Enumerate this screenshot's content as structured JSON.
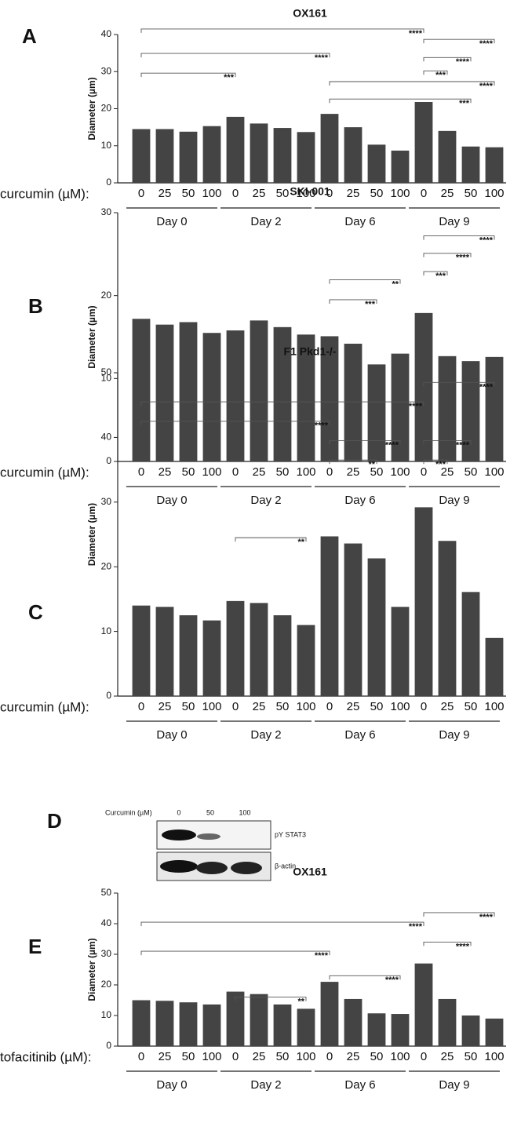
{
  "chart_data": [
    {
      "type": "bar",
      "panel": "A",
      "title": "OX161",
      "ylabel": "Diameter (µm)",
      "xlabel": "curcumin (µM):",
      "groups": [
        "Day 0",
        "Day 2",
        "Day 6",
        "Day 9"
      ],
      "categories": [
        "0",
        "25",
        "50",
        "100",
        "0",
        "25",
        "50",
        "100",
        "0",
        "25",
        "50",
        "100",
        "0",
        "25",
        "50",
        "100"
      ],
      "values": [
        14.5,
        14.5,
        13.8,
        15.3,
        17.8,
        16.0,
        14.8,
        13.7,
        18.6,
        15.0,
        10.3,
        8.7,
        21.8,
        14.0,
        9.8,
        9.6
      ],
      "color": "#444444",
      "ylim": [
        0,
        40
      ],
      "yticks": [
        0,
        10,
        20,
        30,
        40
      ],
      "annotations": [
        {
          "text": "****",
          "from": 0,
          "to": 12,
          "y": 41.5
        },
        {
          "text": "****",
          "from": 0,
          "to": 8,
          "y": 34.9
        },
        {
          "text": "***",
          "from": 0,
          "to": 4,
          "y": 29.6
        },
        {
          "text": "****",
          "from": 8,
          "to": 15,
          "y": 27.3
        },
        {
          "text": "***",
          "from": 8,
          "to": 14,
          "y": 22.6
        },
        {
          "text": "****",
          "from": 12,
          "to": 15,
          "y": 38.7
        },
        {
          "text": "****",
          "from": 12,
          "to": 14,
          "y": 33.8
        },
        {
          "text": "***",
          "from": 12,
          "to": 13,
          "y": 30.2
        }
      ]
    },
    {
      "type": "bar",
      "panel": "B",
      "title": "SKI-001",
      "ylabel": "Diameter (µm)",
      "xlabel": "curcumin (µM):",
      "groups": [
        "Day 0",
        "Day 2",
        "Day 6",
        "Day 9"
      ],
      "categories": [
        "0",
        "25",
        "50",
        "100",
        "0",
        "25",
        "50",
        "100",
        "0",
        "25",
        "50",
        "100",
        "0",
        "25",
        "50",
        "100"
      ],
      "values": [
        17.2,
        16.5,
        16.8,
        15.5,
        15.8,
        17.0,
        16.2,
        15.3,
        15.1,
        14.2,
        11.7,
        13.0,
        17.9,
        12.7,
        12.1,
        12.6
      ],
      "color": "#444444",
      "ylim": [
        0,
        30
      ],
      "yticks": [
        0,
        10,
        20,
        30
      ],
      "annotations": [
        {
          "text": "**",
          "from": 8,
          "to": 11,
          "y": 21.9
        },
        {
          "text": "***",
          "from": 8,
          "to": 10,
          "y": 19.5
        },
        {
          "text": "****",
          "from": 12,
          "to": 15,
          "y": 27.2
        },
        {
          "text": "****",
          "from": 12,
          "to": 14,
          "y": 25.1
        },
        {
          "text": "***",
          "from": 12,
          "to": 13,
          "y": 22.9
        }
      ]
    },
    {
      "type": "bar",
      "panel": "C",
      "title": "F1 Pkd1-/-",
      "ylabel": "Diameter (µm)",
      "xlabel": "curcumin (µM):",
      "groups": [
        "Day 0",
        "Day 2",
        "Day 6",
        "Day 9"
      ],
      "categories": [
        "0",
        "25",
        "50",
        "100",
        "0",
        "25",
        "50",
        "100",
        "0",
        "25",
        "50",
        "100",
        "0",
        "25",
        "50",
        "100"
      ],
      "values": [
        14.0,
        13.8,
        12.5,
        11.7,
        14.7,
        14.4,
        12.5,
        11.0,
        24.7,
        23.6,
        21.3,
        13.8,
        29.2,
        24.0,
        16.1,
        9.0
      ],
      "color": "#444444",
      "ylim": [
        0,
        50
      ],
      "yticks": [
        0,
        10,
        20,
        30,
        40,
        50
      ],
      "annotations": [
        {
          "text": "****",
          "from": 12,
          "to": 15,
          "y": 48.5
        },
        {
          "text": "****",
          "from": 0,
          "to": 12,
          "y": 45.5
        },
        {
          "text": "****",
          "from": 0,
          "to": 8,
          "y": 42.5
        },
        {
          "text": "****",
          "from": 8,
          "to": 11,
          "y": 39.5
        },
        {
          "text": "****",
          "from": 12,
          "to": 14,
          "y": 39.5
        },
        {
          "text": "**",
          "from": 8,
          "to": 10,
          "y": 36.5
        },
        {
          "text": "***",
          "from": 12,
          "to": 13,
          "y": 36.5
        },
        {
          "text": "**",
          "from": 4,
          "to": 7,
          "y": 24.5
        }
      ]
    },
    {
      "type": "bar",
      "panel": "E",
      "title": "OX161",
      "ylabel": "Diameter (µm)",
      "xlabel": "tofacitinib (µM):",
      "groups": [
        "Day 0",
        "Day 2",
        "Day 6",
        "Day 9"
      ],
      "categories": [
        "0",
        "25",
        "50",
        "100",
        "0",
        "25",
        "50",
        "100",
        "0",
        "25",
        "50",
        "100",
        "0",
        "25",
        "50",
        "100"
      ],
      "values": [
        15.0,
        14.8,
        14.3,
        13.6,
        17.8,
        17.0,
        13.6,
        12.2,
        21.0,
        15.4,
        10.7,
        10.5,
        27.0,
        15.4,
        10.0,
        9.0
      ],
      "color": "#444444",
      "ylim": [
        0,
        50
      ],
      "yticks": [
        0,
        10,
        20,
        30,
        40,
        50
      ],
      "annotations": [
        {
          "text": "****",
          "from": 12,
          "to": 15,
          "y": 43.6
        },
        {
          "text": "****",
          "from": 0,
          "to": 12,
          "y": 40.5
        },
        {
          "text": "****",
          "from": 12,
          "to": 14,
          "y": 34.0
        },
        {
          "text": "****",
          "from": 0,
          "to": 8,
          "y": 31.0
        },
        {
          "text": "****",
          "from": 8,
          "to": 11,
          "y": 23.0
        },
        {
          "text": "**",
          "from": 4,
          "to": 7,
          "y": 16.0
        }
      ]
    }
  ],
  "blot": {
    "panel": "D",
    "treatment": "Curcumin (µM)",
    "lanes": [
      "0",
      "50",
      "100"
    ],
    "rows": [
      "pY STAT3",
      "β-actin"
    ]
  }
}
